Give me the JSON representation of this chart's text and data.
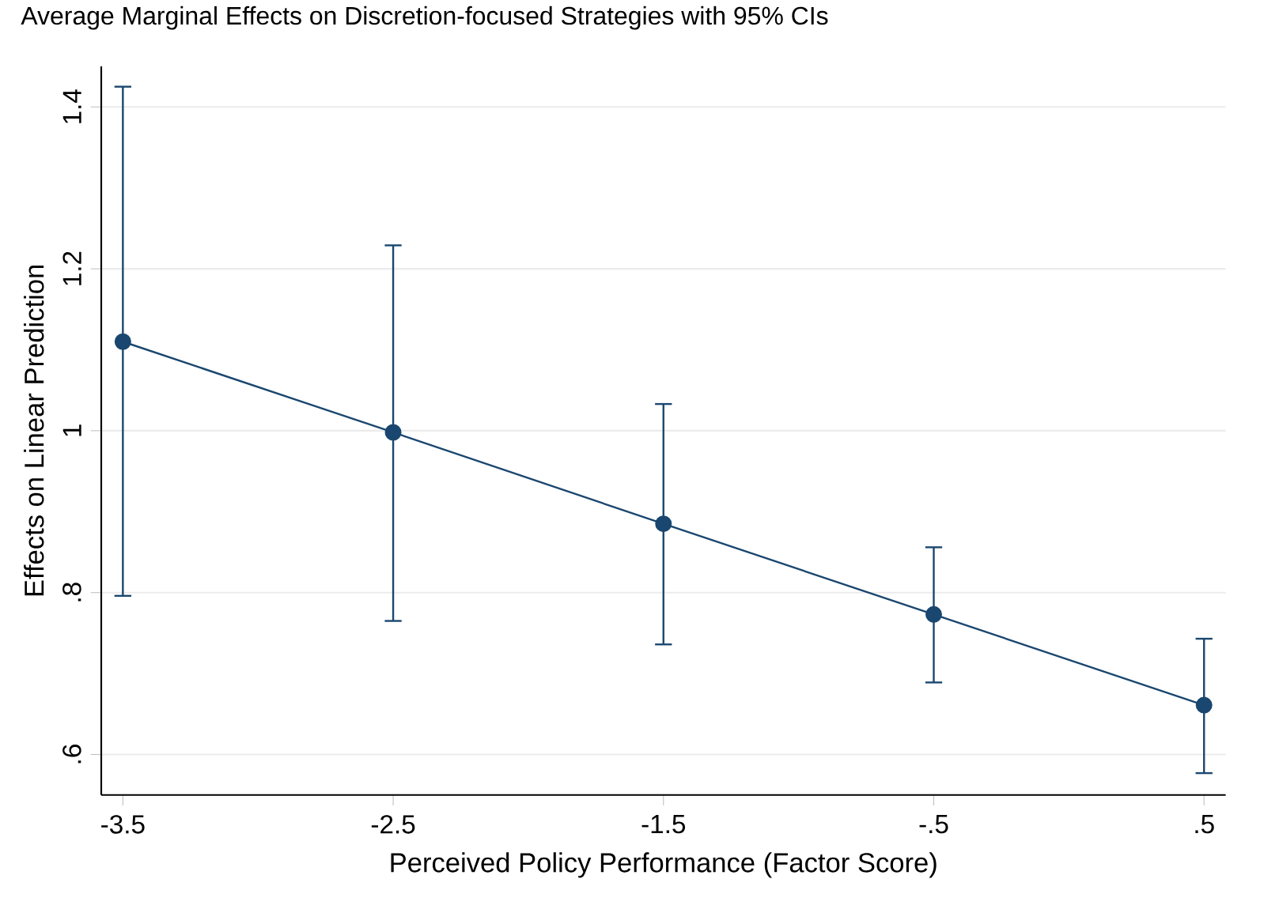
{
  "chart_data": {
    "type": "line",
    "title": "Average Marginal Effects on Discretion-focused Strategies with 95% CIs",
    "xlabel": "Perceived Policy Performance (Factor Score)",
    "ylabel": "Effects on Linear Prediction",
    "x": [
      -3.5,
      -2.5,
      -1.5,
      -0.5,
      0.5
    ],
    "series": [
      {
        "color": "#1a476f",
        "values": [
          1.11,
          0.998,
          0.885,
          0.773,
          0.661
        ],
        "errors": [
          [
            0.796,
            1.425
          ],
          [
            0.765,
            1.229
          ],
          [
            0.736,
            1.033
          ],
          [
            0.689,
            0.856
          ],
          [
            0.577,
            0.743
          ]
        ]
      }
    ],
    "xlim": [
      -3.58,
      0.58
    ],
    "ylim": [
      0.55,
      1.45
    ],
    "xticks": [
      {
        "value": -3.5,
        "label": "-3.5"
      },
      {
        "value": -2.5,
        "label": "-2.5"
      },
      {
        "value": -1.5,
        "label": "-1.5"
      },
      {
        "value": -0.5,
        "label": "-.5"
      },
      {
        "value": 0.5,
        "label": ".5"
      }
    ],
    "yticks": [
      {
        "value": 0.6,
        "label": ".6"
      },
      {
        "value": 0.8,
        "label": ".8"
      },
      {
        "value": 1,
        "label": "1"
      },
      {
        "value": 1.2,
        "label": "1.2"
      },
      {
        "value": 1.4,
        "label": "1.4"
      }
    ],
    "grid": "y",
    "marker": "circle",
    "line_style": "solid"
  }
}
